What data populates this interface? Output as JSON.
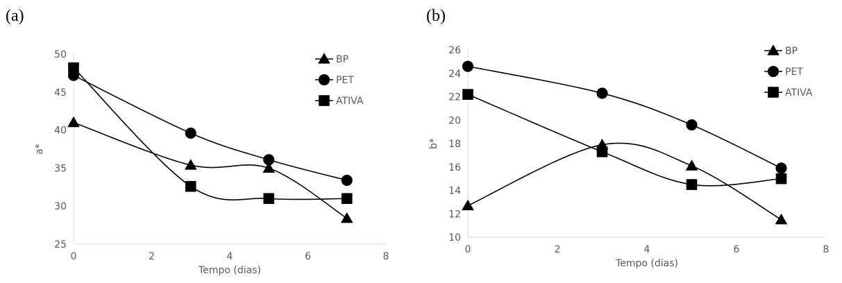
{
  "figures": [
    {
      "id": "a",
      "label": "(a)"
    },
    {
      "id": "b",
      "label": "(b)"
    }
  ],
  "chart_data": [
    {
      "type": "line",
      "panel": "(a)",
      "xlabel": "Tempo (dias)",
      "ylabel": "a*",
      "xlim": [
        0,
        8
      ],
      "ylim": [
        25,
        50
      ],
      "xticks": [
        0,
        2,
        4,
        6,
        8
      ],
      "yticks": [
        25,
        30,
        35,
        40,
        45,
        50
      ],
      "grid": false,
      "legend_position": "top-right",
      "x": [
        0,
        3,
        5,
        7
      ],
      "series": [
        {
          "name": "BP",
          "marker": "triangle",
          "values": [
            41.0,
            35.4,
            35.0,
            28.4
          ]
        },
        {
          "name": "PET",
          "marker": "circle",
          "values": [
            47.2,
            39.6,
            36.1,
            33.4
          ]
        },
        {
          "name": "ATIVA",
          "marker": "square",
          "values": [
            48.2,
            32.6,
            31.0,
            31.0
          ]
        }
      ]
    },
    {
      "type": "line",
      "panel": "(b)",
      "xlabel": "Tempo (dias)",
      "ylabel": "b*",
      "xlim": [
        0,
        8
      ],
      "ylim": [
        10,
        26
      ],
      "xticks": [
        0,
        2,
        4,
        6,
        8
      ],
      "yticks": [
        10,
        12,
        14,
        16,
        18,
        20,
        22,
        24,
        26
      ],
      "grid": false,
      "legend_position": "top-right",
      "x": [
        0,
        3,
        5,
        7
      ],
      "series": [
        {
          "name": "BP",
          "marker": "triangle",
          "values": [
            12.7,
            17.9,
            16.1,
            11.5
          ]
        },
        {
          "name": "PET",
          "marker": "circle",
          "values": [
            24.6,
            22.3,
            19.6,
            15.9
          ]
        },
        {
          "name": "ATIVA",
          "marker": "square",
          "values": [
            22.2,
            17.3,
            14.5,
            15.0
          ]
        }
      ]
    }
  ]
}
